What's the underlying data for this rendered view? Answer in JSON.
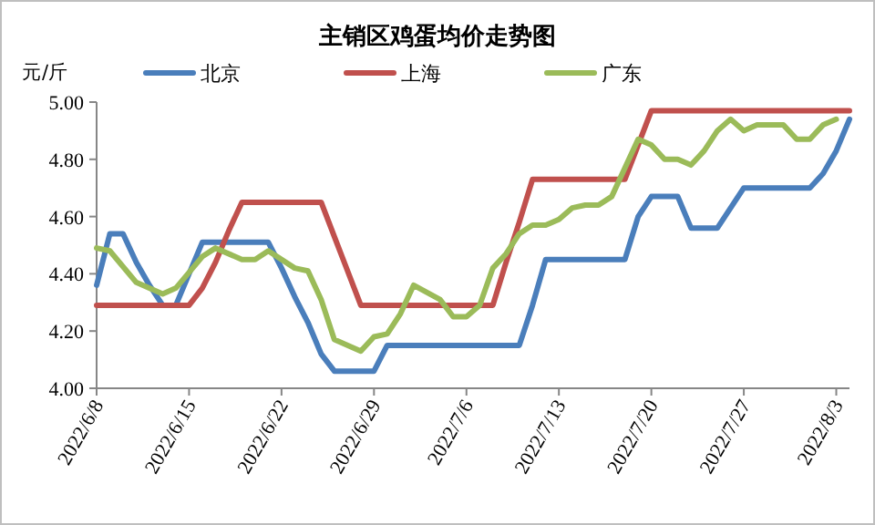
{
  "chart_data": {
    "type": "line",
    "title": "主销区鸡蛋均价走势图",
    "ylabel": "元/斤",
    "legend": "top",
    "marker": "none",
    "line_style": "solid",
    "grid": false,
    "xlim": [
      "2022-06-08",
      "2022-08-04"
    ],
    "xticks": [
      {
        "value": "2022-06-08",
        "label": "2022/6/8"
      },
      {
        "value": "2022-06-15",
        "label": "2022/6/15"
      },
      {
        "value": "2022-06-22",
        "label": "2022/6/22"
      },
      {
        "value": "2022-06-29",
        "label": "2022/6/29"
      },
      {
        "value": "2022-07-06",
        "label": "2022/7/6"
      },
      {
        "value": "2022-07-13",
        "label": "2022/7/13"
      },
      {
        "value": "2022-07-20",
        "label": "2022/7/20"
      },
      {
        "value": "2022-07-27",
        "label": "2022/7/27"
      },
      {
        "value": "2022-08-03",
        "label": "2022/8/3"
      }
    ],
    "ylim": [
      4,
      5
    ],
    "yticks": [
      {
        "value": 4,
        "label": "4.00"
      },
      {
        "value": 4.2,
        "label": "4.20"
      },
      {
        "value": 4.4,
        "label": "4.40"
      },
      {
        "value": 4.6,
        "label": "4.60"
      },
      {
        "value": 4.8,
        "label": "4.80"
      },
      {
        "value": 5,
        "label": "5.00"
      }
    ],
    "series": [
      {
        "name": "北京",
        "color": "#4a7ebb",
        "x": [
          "2022-06-08",
          "2022-06-09",
          "2022-06-10",
          "2022-06-11",
          "2022-06-12",
          "2022-06-13",
          "2022-06-14",
          "2022-06-15",
          "2022-06-16",
          "2022-06-21",
          "2022-06-22",
          "2022-06-23",
          "2022-06-24",
          "2022-06-25",
          "2022-06-26",
          "2022-06-29",
          "2022-06-30",
          "2022-07-10",
          "2022-07-11",
          "2022-07-12",
          "2022-07-18",
          "2022-07-19",
          "2022-07-20",
          "2022-07-22",
          "2022-07-23",
          "2022-07-25",
          "2022-07-26",
          "2022-07-27",
          "2022-08-01",
          "2022-08-02",
          "2022-08-03",
          "2022-08-04"
        ],
        "values": [
          4.36,
          4.54,
          4.54,
          4.44,
          4.36,
          4.29,
          4.29,
          4.4,
          4.51,
          4.51,
          4.42,
          4.32,
          4.23,
          4.12,
          4.06,
          4.06,
          4.15,
          4.15,
          4.29,
          4.45,
          4.45,
          4.6,
          4.67,
          4.67,
          4.56,
          4.56,
          4.63,
          4.7,
          4.7,
          4.75,
          4.83,
          4.94
        ]
      },
      {
        "name": "上海",
        "color": "#c0504d",
        "x": [
          "2022-06-08",
          "2022-06-15",
          "2022-06-16",
          "2022-06-17",
          "2022-06-18",
          "2022-06-19",
          "2022-06-25",
          "2022-06-26",
          "2022-06-27",
          "2022-06-28",
          "2022-07-08",
          "2022-07-09",
          "2022-07-10",
          "2022-07-11",
          "2022-07-18",
          "2022-07-19",
          "2022-07-20",
          "2022-08-04"
        ],
        "values": [
          4.29,
          4.29,
          4.35,
          4.44,
          4.55,
          4.65,
          4.65,
          4.53,
          4.41,
          4.29,
          4.29,
          4.44,
          4.58,
          4.73,
          4.73,
          4.85,
          4.97,
          4.97
        ]
      },
      {
        "name": "广东",
        "color": "#9bbb59",
        "x": [
          "2022-06-08",
          "2022-06-09",
          "2022-06-11",
          "2022-06-13",
          "2022-06-14",
          "2022-06-16",
          "2022-06-17",
          "2022-06-19",
          "2022-06-20",
          "2022-06-21",
          "2022-06-23",
          "2022-06-24",
          "2022-06-25",
          "2022-06-26",
          "2022-06-28",
          "2022-06-29",
          "2022-06-30",
          "2022-07-01",
          "2022-07-02",
          "2022-07-04",
          "2022-07-05",
          "2022-07-06",
          "2022-07-07",
          "2022-07-08",
          "2022-07-09",
          "2022-07-10",
          "2022-07-11",
          "2022-07-12",
          "2022-07-13",
          "2022-07-14",
          "2022-07-15",
          "2022-07-16",
          "2022-07-17",
          "2022-07-19",
          "2022-07-20",
          "2022-07-21",
          "2022-07-22",
          "2022-07-23",
          "2022-07-24",
          "2022-07-25",
          "2022-07-26",
          "2022-07-27",
          "2022-07-28",
          "2022-07-30",
          "2022-07-31",
          "2022-08-01",
          "2022-08-02",
          "2022-08-03"
        ],
        "values": [
          4.49,
          4.48,
          4.37,
          4.33,
          4.35,
          4.46,
          4.49,
          4.45,
          4.45,
          4.48,
          4.42,
          4.41,
          4.31,
          4.17,
          4.13,
          4.18,
          4.19,
          4.26,
          4.36,
          4.31,
          4.25,
          4.25,
          4.29,
          4.42,
          4.47,
          4.54,
          4.57,
          4.57,
          4.59,
          4.63,
          4.64,
          4.64,
          4.67,
          4.87,
          4.85,
          4.8,
          4.8,
          4.78,
          4.83,
          4.9,
          4.94,
          4.9,
          4.92,
          4.92,
          4.87,
          4.87,
          4.92,
          4.94
        ]
      }
    ]
  }
}
